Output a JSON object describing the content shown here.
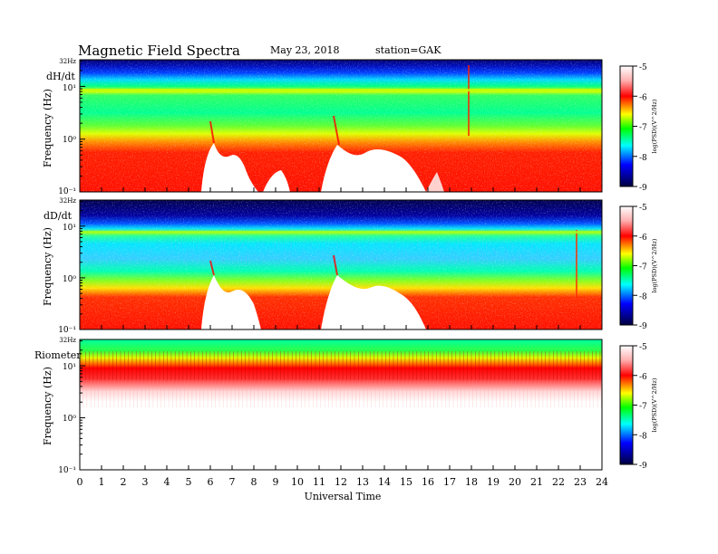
{
  "header": {
    "title": "Magnetic  Field  Spectra",
    "date": "May 23, 2018",
    "station": "station=GAK"
  },
  "colorbar": {
    "label": "log(PSD)(V^2/Hz)",
    "ticks": [
      "-5",
      "-6",
      "-7",
      "-8",
      "-9"
    ]
  },
  "chart_data": [
    {
      "type": "heatmap",
      "panel_label": "dH/dt",
      "ylabel": "Frequency  (Hz)",
      "y_scale": "log",
      "ylim": [
        0.1,
        32
      ],
      "y_top_label": "32Hz",
      "y_tick_labels": [
        "10¹",
        "10⁰",
        "10⁻¹"
      ],
      "xlim": [
        0,
        24
      ],
      "color_range": [
        -9,
        -5
      ],
      "colormap": [
        "#000060",
        "#0000ff",
        "#00ffff",
        "#00ff00",
        "#ffff00",
        "#ff0000",
        "#ffffff"
      ],
      "features": [
        {
          "name": "upper band",
          "freq_range": [
            22,
            32
          ],
          "level": -8.7
        },
        {
          "name": "persistent line",
          "freq_hz": 8,
          "level": -6.8
        },
        {
          "name": "quiet gaps",
          "utc_ranges": [
            [
              5.5,
              7.8
            ],
            [
              8.3,
              9.2
            ],
            [
              11.3,
              15.5
            ]
          ]
        },
        {
          "name": "spike",
          "utc": 17.85,
          "level": -6.0
        }
      ]
    },
    {
      "type": "heatmap",
      "panel_label": "dD/dt",
      "ylabel": "Frequency  (Hz)",
      "y_scale": "log",
      "ylim": [
        0.1,
        32
      ],
      "y_top_label": "32Hz",
      "y_tick_labels": [
        "10¹",
        "10⁰",
        "10⁻¹"
      ],
      "xlim": [
        0,
        24
      ],
      "color_range": [
        -9,
        -5
      ],
      "colormap": [
        "#000060",
        "#0000ff",
        "#00ffff",
        "#00ff00",
        "#ffff00",
        "#ff0000",
        "#ffffff"
      ],
      "features": [
        {
          "name": "upper band",
          "freq_range": [
            15,
            32
          ],
          "level": -8.8
        },
        {
          "name": "persistent line",
          "freq_hz": 8,
          "level": -7.0
        },
        {
          "name": "quiet gaps",
          "utc_ranges": [
            [
              5.7,
              8.2
            ],
            [
              11.3,
              15.8
            ]
          ]
        },
        {
          "name": "spike",
          "utc": 22.8,
          "level": -6.0
        }
      ]
    },
    {
      "type": "heatmap",
      "panel_label": "Riometer",
      "ylabel": "Frequency  (Hz)",
      "y_scale": "log",
      "ylim": [
        0.1,
        32
      ],
      "y_top_label": "32Hz",
      "y_tick_labels": [
        "10¹",
        "10⁰",
        "10⁻¹"
      ],
      "xlim": [
        0,
        24
      ],
      "color_range": [
        -9,
        -5
      ],
      "colormap": [
        "#000060",
        "#0000ff",
        "#00ffff",
        "#00ff00",
        "#ffff00",
        "#ff0000",
        "#ffffff"
      ],
      "features": [
        {
          "name": "green band",
          "freq_range": [
            18,
            32
          ],
          "level": -7.0
        },
        {
          "name": "red band",
          "freq_range": [
            5,
            14
          ],
          "level": -5.8
        }
      ]
    }
  ],
  "x_axis": {
    "label": "Universal Time",
    "ticks": [
      "0",
      "1",
      "2",
      "3",
      "4",
      "5",
      "6",
      "7",
      "8",
      "9",
      "10",
      "11",
      "12",
      "13",
      "14",
      "15",
      "16",
      "17",
      "18",
      "19",
      "20",
      "21",
      "22",
      "23",
      "24"
    ]
  }
}
